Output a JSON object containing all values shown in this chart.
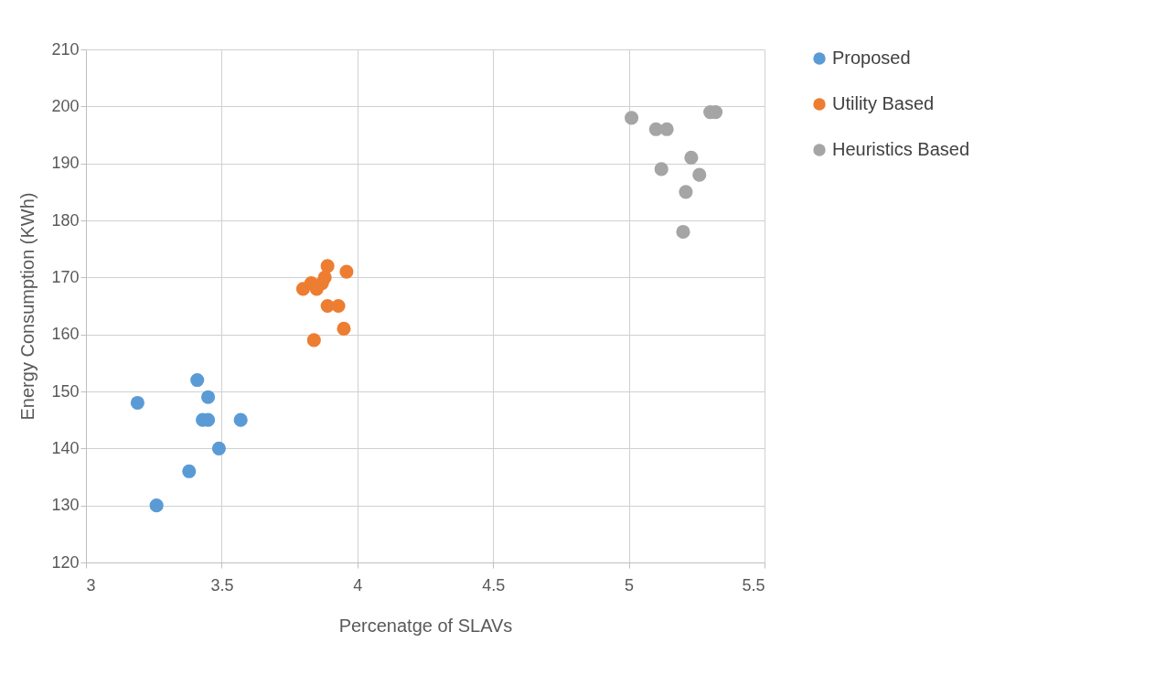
{
  "chart_data": {
    "type": "scatter",
    "xlabel": "Percenatge of SLAVs",
    "ylabel": "Energy Consumption (KWh)",
    "xlim": [
      3,
      5.5
    ],
    "xticks": [
      3,
      3.5,
      4,
      4.5,
      5,
      5.5
    ],
    "ylim": [
      120,
      210
    ],
    "yticks": [
      120,
      130,
      140,
      150,
      160,
      170,
      180,
      190,
      200,
      210
    ],
    "grid": true,
    "legend": "right",
    "marker": "circle",
    "series": [
      {
        "name": "Proposed",
        "color": "#5b9bd5",
        "x": [
          3.19,
          3.41,
          3.45,
          3.43,
          3.45,
          3.57,
          3.49,
          3.38,
          3.26
        ],
        "values": [
          148,
          152,
          149,
          145,
          145,
          145,
          140,
          136,
          130
        ]
      },
      {
        "name": "Utility Based",
        "color": "#ed7d31",
        "x": [
          3.89,
          3.96,
          3.8,
          3.83,
          3.85,
          3.87,
          3.88,
          3.89,
          3.93,
          3.95,
          3.84
        ],
        "values": [
          172,
          171,
          168,
          169,
          168,
          169,
          170,
          165,
          165,
          161,
          159
        ]
      },
      {
        "name": "Heuristics Based",
        "color": "#a5a5a5",
        "x": [
          5.01,
          5.1,
          5.14,
          5.3,
          5.32,
          5.23,
          5.12,
          5.26,
          5.21,
          5.2
        ],
        "values": [
          198,
          196,
          196,
          199,
          199,
          191,
          189,
          188,
          185,
          178
        ]
      }
    ]
  }
}
